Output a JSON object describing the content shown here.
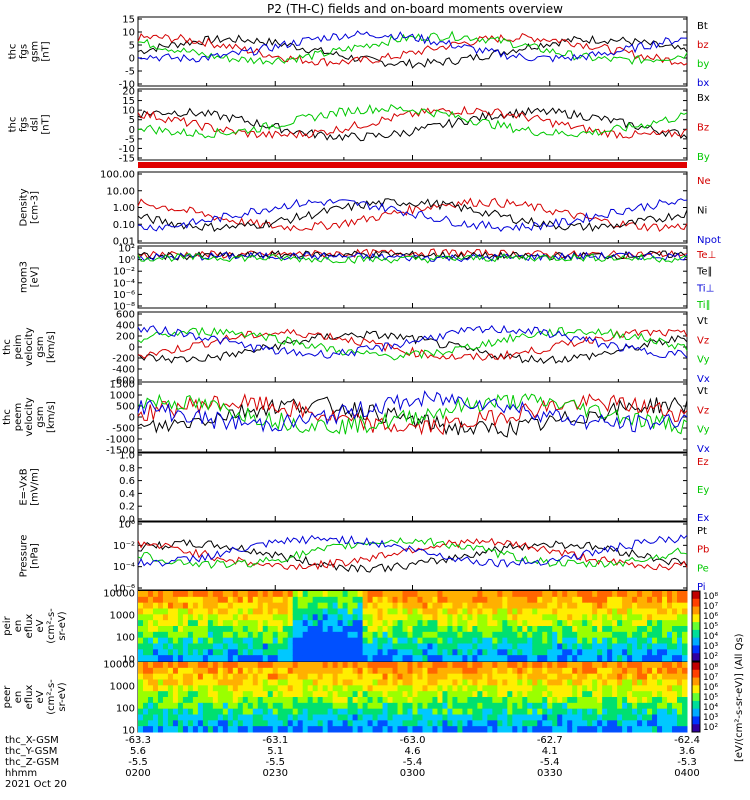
{
  "title": "P2 (TH-C) fields and on-board moments overview",
  "chart_data": [
    {
      "type": "line",
      "id": "fgs_gsm",
      "ylabel": [
        "thc",
        "fgs",
        "gsm",
        "[nT]"
      ],
      "yticks": [
        "15",
        "10",
        "5",
        "0",
        "-5",
        "-10"
      ],
      "ylim": [
        -12,
        16
      ],
      "series": [
        {
          "name": "Bt",
          "color": "#000000"
        },
        {
          "name": "bz",
          "color": "#d40000"
        },
        {
          "name": "by",
          "color": "#00c800"
        },
        {
          "name": "bx",
          "color": "#0000d8"
        }
      ]
    },
    {
      "type": "line",
      "id": "fgs_dsl",
      "ylabel": [
        "thc",
        "fgs",
        "dsl",
        "[nT]"
      ],
      "yticks": [
        "20",
        "15",
        "10",
        "5",
        "0",
        "-5",
        "-10",
        "-15"
      ],
      "ylim": [
        -18,
        22
      ],
      "series": [
        {
          "name": "Bx",
          "color": "#000000"
        },
        {
          "name": "Bz",
          "color": "#d40000"
        },
        {
          "name": "By",
          "color": "#00c800"
        }
      ]
    },
    {
      "type": "line",
      "id": "density",
      "ylabel": [
        "Density",
        "[cm-3]"
      ],
      "yticks": [
        "100.00",
        "10.00",
        "1.00",
        "0.10",
        "0.01"
      ],
      "scale": "log",
      "series": [
        {
          "name": "Ne",
          "color": "#d40000"
        },
        {
          "name": "Ni",
          "color": "#000000"
        },
        {
          "name": "Npot",
          "color": "#0000d8"
        }
      ]
    },
    {
      "type": "line",
      "id": "temp",
      "ylabel": [
        "mom3",
        "[eV]"
      ],
      "yticks": [
        "10²",
        "10⁰",
        "10⁻²",
        "10⁻⁴",
        "10⁻⁶",
        "10⁻⁸"
      ],
      "scale": "log",
      "series": [
        {
          "name": "Te⊥",
          "color": "#d40000"
        },
        {
          "name": "Te∥",
          "color": "#000000"
        },
        {
          "name": "Ti⊥",
          "color": "#0000d8"
        },
        {
          "name": "Ti∥",
          "color": "#00c800"
        }
      ]
    },
    {
      "type": "line",
      "id": "peim_vel",
      "ylabel": [
        "thc",
        "peim",
        "velocity",
        "gsm",
        "[km/s]"
      ],
      "yticks": [
        "600",
        "400",
        "200",
        "0",
        "-200",
        "-400",
        "-600"
      ],
      "ylim": [
        -650,
        650
      ],
      "series": [
        {
          "name": "Vt",
          "color": "#000000"
        },
        {
          "name": "Vz",
          "color": "#d40000"
        },
        {
          "name": "Vy",
          "color": "#00c800"
        },
        {
          "name": "Vx",
          "color": "#0000d8"
        }
      ]
    },
    {
      "type": "line",
      "id": "peem_vel",
      "ylabel": [
        "thc",
        "peem",
        "velocity",
        "gsm",
        "[km/s]"
      ],
      "yticks": [
        "1500",
        "1000",
        "500",
        "0",
        "-500",
        "-1000",
        "-1500"
      ],
      "ylim": [
        -1500,
        1500
      ],
      "series": [
        {
          "name": "Vt",
          "color": "#000000"
        },
        {
          "name": "Vz",
          "color": "#d40000"
        },
        {
          "name": "Vy",
          "color": "#00c800"
        },
        {
          "name": "Vx",
          "color": "#0000d8"
        }
      ]
    },
    {
      "type": "line",
      "id": "efield",
      "ylabel": [
        "E=-VxB",
        "[mV/m]"
      ],
      "yticks": [
        "1.0",
        "0.8",
        "0.6",
        "0.4",
        "0.2",
        "0.0"
      ],
      "ylim": [
        0,
        1
      ],
      "series": [
        {
          "name": "Ez",
          "color": "#d40000"
        },
        {
          "name": "Ey",
          "color": "#00c800"
        },
        {
          "name": "Ex",
          "color": "#0000d8"
        }
      ]
    },
    {
      "type": "line",
      "id": "pressure",
      "ylabel": [
        "Pressure",
        "[nPa]"
      ],
      "yticks": [
        "10⁰",
        "10⁻²",
        "10⁻⁴",
        "10⁻⁶"
      ],
      "scale": "log",
      "series": [
        {
          "name": "Pt",
          "color": "#000000"
        },
        {
          "name": "Pb",
          "color": "#d40000"
        },
        {
          "name": "Pe",
          "color": "#00c800"
        },
        {
          "name": "Pi",
          "color": "#0000d8"
        }
      ]
    },
    {
      "type": "heatmap",
      "id": "peir_flux",
      "ylabel": [
        "thc",
        "peir",
        "en",
        "eflux",
        "eV",
        "(cm²-s-",
        "sr-eV)"
      ],
      "yticks": [
        "10000",
        "1000",
        "100",
        "10"
      ],
      "scale": "log"
    },
    {
      "type": "heatmap",
      "id": "peer_flux",
      "ylabel": [
        "thc",
        "peer",
        "en",
        "eflux",
        "eV",
        "(cm²-s-",
        "sr-eV)"
      ],
      "yticks": [
        "10000",
        "1000",
        "100",
        "10"
      ],
      "scale": "log"
    }
  ],
  "colorbars": [
    {
      "ticks": [
        "10⁸",
        "10⁷",
        "10⁶",
        "10⁵",
        "10⁴",
        "10³",
        "10²"
      ]
    },
    {
      "ticks": [
        "10⁸",
        "10⁷",
        "10⁶",
        "10⁵",
        "10⁴",
        "10³",
        "10²"
      ]
    }
  ],
  "colorbar_label": "[eV/(cm²-s-sr-eV)] (All Qs)",
  "footer": {
    "rows": [
      {
        "label": "thc_X-GSM",
        "values": [
          "-63.3",
          "-63.1",
          "-63.0",
          "-62.7",
          "-62.4"
        ]
      },
      {
        "label": "thc_Y-GSM",
        "values": [
          "5.6",
          "5.1",
          "4.6",
          "4.1",
          "3.6"
        ]
      },
      {
        "label": "thc_Z-GSM",
        "values": [
          "-5.5",
          "-5.5",
          "-5.4",
          "-5.4",
          "-5.3"
        ]
      },
      {
        "label": "hhmm",
        "values": [
          "0200",
          "0230",
          "0300",
          "0330",
          "0400"
        ]
      }
    ],
    "date": "2021 Oct 20"
  }
}
